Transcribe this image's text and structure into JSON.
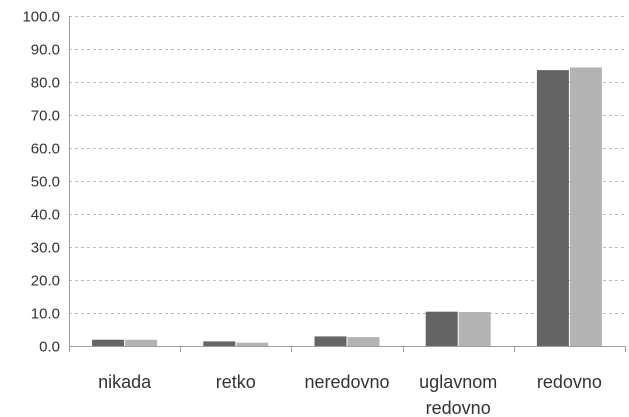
{
  "chart_data": {
    "type": "bar",
    "categories": [
      [
        "nikada"
      ],
      [
        "retko"
      ],
      [
        "neredovno"
      ],
      [
        "uglavnom",
        "redovno"
      ],
      [
        "redovno"
      ]
    ],
    "series": [
      {
        "color": "#646464",
        "values": [
          1.9,
          1.4,
          2.9,
          10.4,
          83.6
        ]
      },
      {
        "color": "#b3b3b3",
        "values": [
          1.9,
          1.0,
          2.7,
          10.3,
          84.4
        ]
      }
    ],
    "yticks": [
      "0.0",
      "10.0",
      "20.0",
      "30.0",
      "40.0",
      "50.0",
      "60.0",
      "70.0",
      "80.0",
      "90.0",
      "100.0"
    ],
    "ylim": [
      0,
      100
    ],
    "grid": true,
    "legend": "none",
    "title": "",
    "xlabel": "",
    "ylabel": ""
  }
}
